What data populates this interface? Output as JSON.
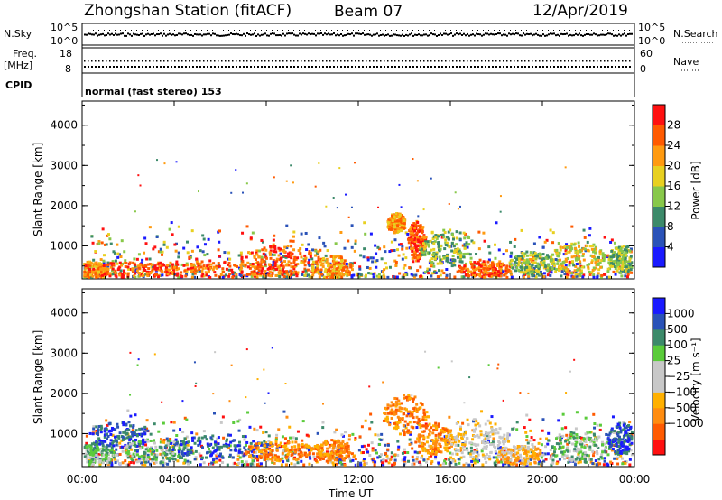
{
  "header": {
    "station": "Zhongshan Station (fitACF)",
    "beam": "Beam 07",
    "date": "12/Apr/2019"
  },
  "strips": {
    "nsky_label": "N.Sky",
    "nsky_ticks": [
      "10^5",
      "10^0"
    ],
    "nsearch_label": "N.Search",
    "nsearch_ticks": [
      "10^5",
      "10^0"
    ],
    "freq_label": "Freq.",
    "freq_unit": "[MHz]",
    "freq_ticks": [
      "18",
      "8"
    ],
    "nave_label": "Nave",
    "nave_ticks": [
      "60",
      "0"
    ],
    "cpid_label": "CPID",
    "cpid_value": "normal (fast stereo) 153"
  },
  "chart_data": [
    {
      "type": "heatmap",
      "name": "power",
      "ylabel": "Slant Range [km]",
      "yticks": [
        "4000",
        "3000",
        "2000",
        "1000"
      ],
      "ylim": [
        180,
        4600
      ],
      "colorbar_label": "Power [dB]",
      "colorbar_ticks": [
        "28",
        "24",
        "20",
        "16",
        "12",
        "8",
        "4"
      ],
      "colors": [
        "#1a1aff",
        "#2a52b8",
        "#3c8a6a",
        "#88c84a",
        "#e8d020",
        "#ff9a10",
        "#ff5a00",
        "#ff1010"
      ],
      "blobs": [
        {
          "t": 0.4,
          "r": 400,
          "dt": 0.7,
          "dr": 250,
          "level": 5
        },
        {
          "t": 1.8,
          "r": 420,
          "dt": 2.5,
          "dr": 200,
          "level": 6
        },
        {
          "t": 5.5,
          "r": 450,
          "dt": 3.5,
          "dr": 220,
          "level": 6
        },
        {
          "t": 8.6,
          "r": 650,
          "dt": 1.8,
          "dr": 400,
          "level": 6
        },
        {
          "t": 10.8,
          "r": 500,
          "dt": 0.9,
          "dr": 300,
          "level": 5
        },
        {
          "t": 13.6,
          "r": 1600,
          "dt": 0.4,
          "dr": 250,
          "level": 5
        },
        {
          "t": 14.5,
          "r": 1150,
          "dt": 0.4,
          "dr": 500,
          "level": 6
        },
        {
          "t": 15.8,
          "r": 1000,
          "dt": 1.2,
          "dr": 450,
          "level": 3
        },
        {
          "t": 17.5,
          "r": 450,
          "dt": 1.2,
          "dr": 200,
          "level": 6
        },
        {
          "t": 19.5,
          "r": 600,
          "dt": 1.0,
          "dr": 300,
          "level": 3
        },
        {
          "t": 21.5,
          "r": 700,
          "dt": 1.2,
          "dr": 400,
          "level": 4
        },
        {
          "t": 23.4,
          "r": 700,
          "dt": 0.6,
          "dr": 350,
          "level": 3
        }
      ]
    },
    {
      "type": "heatmap",
      "name": "velocity",
      "ylabel": "Slant Range [km]",
      "yticks": [
        "4000",
        "3000",
        "2000",
        "1000"
      ],
      "ylim": [
        180,
        4600
      ],
      "xlabel": "Time UT",
      "xticks": [
        "00:00",
        "04:00",
        "08:00",
        "12:00",
        "16:00",
        "20:00",
        "00:00"
      ],
      "xlim": [
        0,
        24
      ],
      "colorbar_label": "Velocity [m s⁻¹]",
      "colorbar_ticks": [
        "1000",
        "500",
        "100",
        "25",
        "−25",
        "−100",
        "−500",
        "−1000"
      ],
      "colors": [
        "#ff1010",
        "#ff5a00",
        "#ff8c10",
        "#ffb000",
        "#c8c8c8",
        "#c8c8c8",
        "#5acb3a",
        "#3c8a6a",
        "#2a52b8",
        "#1a1aff"
      ],
      "blobs": [
        {
          "t": 0.6,
          "r": 500,
          "dt": 0.8,
          "dr": 300,
          "level": 6
        },
        {
          "t": 1.6,
          "r": 1000,
          "dt": 1.3,
          "dr": 350,
          "level": 8
        },
        {
          "t": 3.2,
          "r": 600,
          "dt": 1.5,
          "dr": 300,
          "level": 6
        },
        {
          "t": 6.0,
          "r": 700,
          "dt": 2.5,
          "dr": 300,
          "level": 8
        },
        {
          "t": 8.5,
          "r": 600,
          "dt": 1.5,
          "dr": 250,
          "level": 2
        },
        {
          "t": 10.8,
          "r": 600,
          "dt": 0.8,
          "dr": 300,
          "level": 2
        },
        {
          "t": 14.0,
          "r": 1500,
          "dt": 1.0,
          "dr": 500,
          "level": 2
        },
        {
          "t": 15.3,
          "r": 900,
          "dt": 0.8,
          "dr": 400,
          "level": 2
        },
        {
          "t": 17.0,
          "r": 900,
          "dt": 1.5,
          "dr": 500,
          "level": 4
        },
        {
          "t": 19.0,
          "r": 500,
          "dt": 1.0,
          "dr": 250,
          "level": 3
        },
        {
          "t": 21.5,
          "r": 700,
          "dt": 1.5,
          "dr": 400,
          "level": 6
        },
        {
          "t": 23.4,
          "r": 900,
          "dt": 0.6,
          "dr": 400,
          "level": 8
        }
      ]
    }
  ]
}
